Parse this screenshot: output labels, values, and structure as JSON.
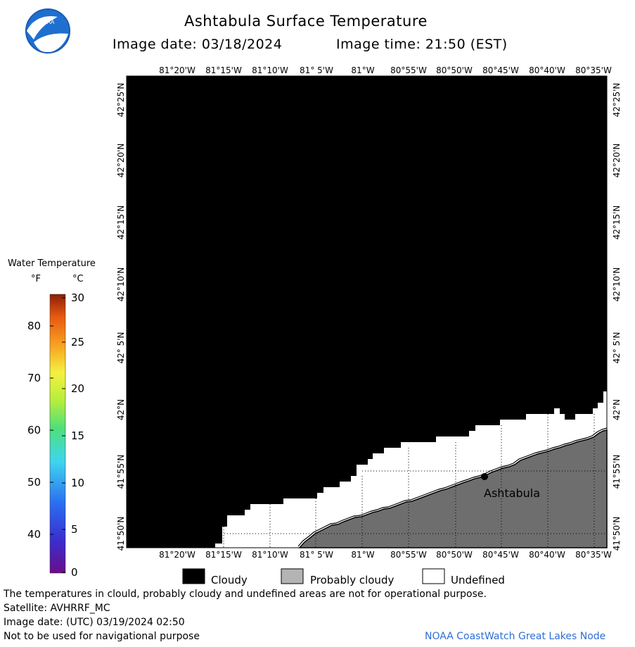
{
  "header": {
    "title": "Ashtabula Surface Temperature",
    "image_date": "Image date: 03/18/2024",
    "image_time": "Image time: 21:50 (EST)"
  },
  "logo": {
    "text": "NOAA"
  },
  "map": {
    "lon_ticks": [
      "81°20'W",
      "81°15'W",
      "81°10'W",
      "81° 5'W",
      "81°W",
      "80°55'W",
      "80°50'W",
      "80°45'W",
      "80°40'W",
      "80°35'W"
    ],
    "lat_ticks": [
      "42°25'N",
      "42°20'N",
      "42°15'N",
      "42°10'N",
      "42° 5'N",
      "42°N",
      "41°55'N",
      "41°50'N"
    ],
    "place_label": "Ashtabula",
    "colors": {
      "cloudy": "#000000",
      "probably_cloudy": "#6e6e6e",
      "undefined": "#ffffff"
    }
  },
  "temperature_legend": {
    "title": "Water Temperature",
    "unit_f": "°F",
    "unit_c": "°C",
    "f_ticks": [
      "80",
      "70",
      "60",
      "50",
      "40"
    ],
    "c_ticks": [
      "30",
      "25",
      "20",
      "15",
      "10",
      "5",
      "0"
    ]
  },
  "category_legend": {
    "cloudy": "Cloudy",
    "probably_cloudy": "Probably cloudy",
    "undefined": "Undefined"
  },
  "footer": {
    "note": "The temperatures in clould, probably cloudy and undefined areas are not for operational purpose.",
    "satellite": "Satellite: AVHRRF_MC",
    "utc_date": "Image date: (UTC) 03/19/2024  02:50",
    "nav_warning": "Not to be used for navigational purpose",
    "credit": "NOAA CoastWatch Great Lakes Node"
  }
}
